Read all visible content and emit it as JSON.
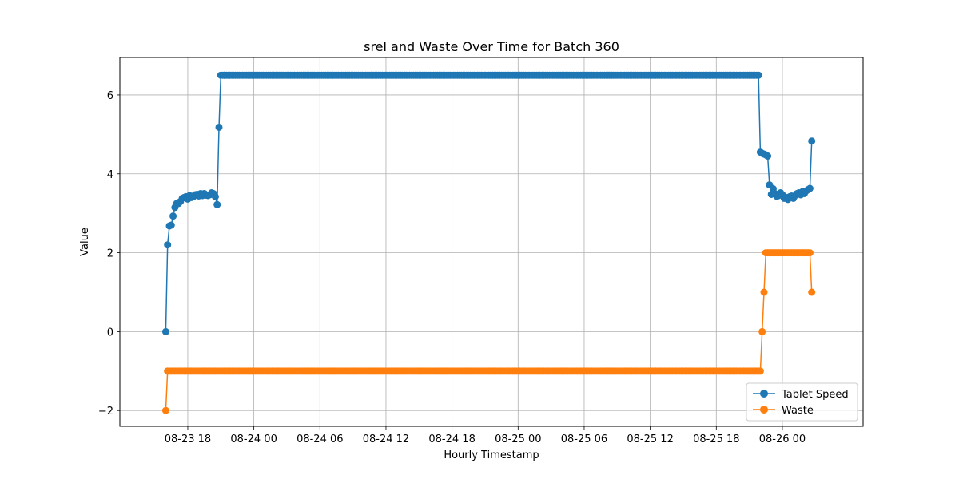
{
  "chart_data": {
    "type": "line",
    "title": "srel and Waste Over Time for Batch 360",
    "xlabel": "Hourly Timestamp",
    "ylabel": "Value",
    "xlim": [
      "2023-08-23 11:50",
      "2023-08-26 07:20"
    ],
    "ylim": [
      -2.4,
      6.95
    ],
    "x_ticks": [
      {
        "value": "2023-08-23 18:00",
        "label": "08-23 18"
      },
      {
        "value": "2023-08-24 00:00",
        "label": "08-24 00"
      },
      {
        "value": "2023-08-24 06:00",
        "label": "08-24 06"
      },
      {
        "value": "2023-08-24 12:00",
        "label": "08-24 12"
      },
      {
        "value": "2023-08-24 18:00",
        "label": "08-24 18"
      },
      {
        "value": "2023-08-25 00:00",
        "label": "08-25 00"
      },
      {
        "value": "2023-08-25 06:00",
        "label": "08-25 06"
      },
      {
        "value": "2023-08-25 12:00",
        "label": "08-25 12"
      },
      {
        "value": "2023-08-25 18:00",
        "label": "08-25 18"
      },
      {
        "value": "2023-08-26 00:00",
        "label": "08-26 00"
      }
    ],
    "y_ticks": [
      {
        "value": -2,
        "label": "−2"
      },
      {
        "value": 0,
        "label": "0"
      },
      {
        "value": 2,
        "label": "2"
      },
      {
        "value": 4,
        "label": "4"
      },
      {
        "value": 6,
        "label": "6"
      }
    ],
    "grid": true,
    "legend_position": "lower-right",
    "series": [
      {
        "name": "Tablet Speed",
        "color": "#1f77b4",
        "segments": [
          {
            "x": [
              "2023-08-23 16:00",
              "2023-08-23 16:10",
              "2023-08-23 16:20",
              "2023-08-23 16:30",
              "2023-08-23 16:40",
              "2023-08-23 16:50",
              "2023-08-23 17:00",
              "2023-08-23 17:10",
              "2023-08-23 17:20",
              "2023-08-23 17:30",
              "2023-08-23 17:40",
              "2023-08-23 17:50",
              "2023-08-23 18:00",
              "2023-08-23 18:10",
              "2023-08-23 18:20",
              "2023-08-23 18:30",
              "2023-08-23 18:40",
              "2023-08-23 18:50",
              "2023-08-23 19:00",
              "2023-08-23 19:10",
              "2023-08-23 19:20",
              "2023-08-23 19:30",
              "2023-08-23 19:40",
              "2023-08-23 19:50",
              "2023-08-23 20:00",
              "2023-08-23 20:10",
              "2023-08-23 20:20",
              "2023-08-23 20:30",
              "2023-08-23 20:40",
              "2023-08-23 20:50",
              "2023-08-23 21:00",
              "2023-08-23 21:10",
              "2023-08-23 21:20"
            ],
            "y": [
              0.0,
              2.2,
              2.68,
              2.7,
              2.93,
              3.15,
              3.25,
              3.25,
              3.3,
              3.38,
              3.4,
              3.42,
              3.36,
              3.45,
              3.4,
              3.42,
              3.47,
              3.48,
              3.44,
              3.5,
              3.45,
              3.5,
              3.46,
              3.45,
              3.47,
              3.52,
              3.5,
              3.42,
              3.22,
              5.18,
              6.5,
              6.5,
              6.5
            ]
          },
          {
            "x_start": "2023-08-23 21:20",
            "x_end": "2023-08-25 21:40",
            "step_minutes": 10,
            "value": 6.5
          },
          {
            "x": [
              "2023-08-25 21:50",
              "2023-08-25 22:00",
              "2023-08-25 22:10",
              "2023-08-25 22:20",
              "2023-08-25 22:30",
              "2023-08-25 22:40",
              "2023-08-25 22:50",
              "2023-08-25 23:00",
              "2023-08-25 23:10",
              "2023-08-25 23:20",
              "2023-08-25 23:30",
              "2023-08-25 23:40",
              "2023-08-25 23:50",
              "2023-08-26 00:00",
              "2023-08-26 00:10",
              "2023-08-26 00:20",
              "2023-08-26 00:30",
              "2023-08-26 00:40",
              "2023-08-26 00:50",
              "2023-08-26 01:00",
              "2023-08-26 01:10",
              "2023-08-26 01:20",
              "2023-08-26 01:30",
              "2023-08-26 01:40",
              "2023-08-26 01:50",
              "2023-08-26 02:00",
              "2023-08-26 02:10",
              "2023-08-26 02:20",
              "2023-08-26 02:30",
              "2023-08-26 02:40"
            ],
            "y": [
              6.5,
              4.55,
              4.52,
              4.5,
              4.48,
              4.45,
              3.72,
              3.48,
              3.62,
              3.5,
              3.43,
              3.45,
              3.52,
              3.47,
              3.38,
              3.4,
              3.35,
              3.42,
              3.44,
              3.38,
              3.45,
              3.5,
              3.52,
              3.47,
              3.55,
              3.5,
              3.57,
              3.6,
              3.63,
              4.83
            ]
          }
        ]
      },
      {
        "name": "Waste",
        "color": "#ff7f0e",
        "segments": [
          {
            "x": [
              "2023-08-23 16:00",
              "2023-08-23 16:10"
            ],
            "y": [
              -2,
              -1
            ]
          },
          {
            "x_start": "2023-08-23 16:10",
            "x_end": "2023-08-25 22:00",
            "step_minutes": 10,
            "value": -1
          },
          {
            "x": [
              "2023-08-25 22:10",
              "2023-08-25 22:20"
            ],
            "y": [
              0,
              1
            ]
          },
          {
            "x_start": "2023-08-25 22:30",
            "x_end": "2023-08-26 02:30",
            "step_minutes": 10,
            "value": 2
          },
          {
            "x": [
              "2023-08-26 02:40"
            ],
            "y": [
              1
            ]
          }
        ]
      }
    ]
  }
}
